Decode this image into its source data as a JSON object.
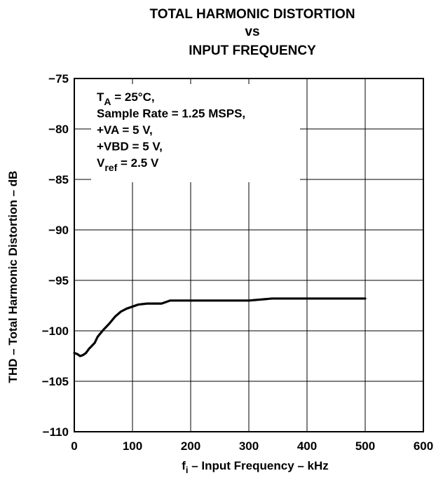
{
  "chart_data": {
    "type": "line",
    "title": [
      "TOTAL HARMONIC DISTORTION",
      "vs",
      "INPUT FREQUENCY"
    ],
    "xlabel": {
      "prefix": "f",
      "subscript": "i",
      "rest": " – Input Frequency – kHz"
    },
    "ylabel": "THD – Total Harmonic Distortion – dB",
    "xlim": [
      0,
      600
    ],
    "ylim": [
      -110,
      -75
    ],
    "xticks": [
      0,
      100,
      200,
      300,
      400,
      500,
      600
    ],
    "xtick_labels": [
      "0",
      "100",
      "200",
      "300",
      "400",
      "500",
      "600"
    ],
    "yticks": [
      -75,
      -80,
      -85,
      -90,
      -95,
      -100,
      -105,
      -110
    ],
    "ytick_labels": [
      "−75",
      "−80",
      "−85",
      "−90",
      "−95",
      "−100",
      "−105",
      "−110"
    ],
    "grid": true,
    "annotation": [
      {
        "main": "T",
        "sub": "A",
        "rest": " = 25°C,"
      },
      {
        "main": "Sample Rate = 1.25 MSPS,",
        "sub": "",
        "rest": ""
      },
      {
        "main": "+VA = 5 V,",
        "sub": "",
        "rest": ""
      },
      {
        "main": "+VBD = 5 V,",
        "sub": "",
        "rest": ""
      },
      {
        "main": "V",
        "sub": "ref",
        "rest": " = 2.5 V"
      }
    ],
    "series": [
      {
        "color": "#000000",
        "x": [
          0,
          5,
          10,
          15,
          20,
          25,
          30,
          35,
          40,
          50,
          60,
          70,
          80,
          90,
          100,
          110,
          125,
          150,
          165,
          200,
          250,
          300,
          340,
          400,
          450,
          500
        ],
        "y": [
          -102.2,
          -102.3,
          -102.5,
          -102.4,
          -102.2,
          -101.8,
          -101.5,
          -101.2,
          -100.6,
          -99.9,
          -99.3,
          -98.6,
          -98.1,
          -97.8,
          -97.6,
          -97.4,
          -97.3,
          -97.3,
          -97.0,
          -97.0,
          -97.0,
          -97.0,
          -96.8,
          -96.8,
          -96.8,
          -96.8
        ]
      }
    ]
  }
}
